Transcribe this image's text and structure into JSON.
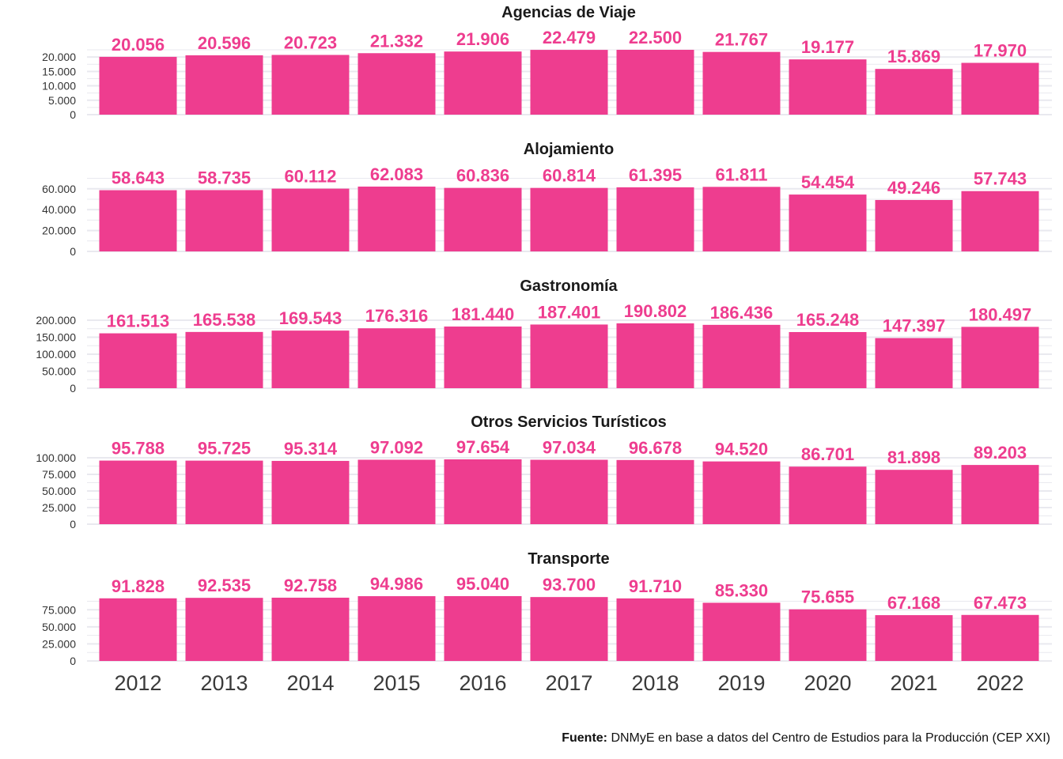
{
  "colors": {
    "bar": "#EE3D8F",
    "label": "#EE3D8F",
    "grid": "#E9E9EF"
  },
  "source": {
    "prefix": "Fuente:",
    "text": " DNMyE en base a datos del Centro de Estudios para la Producción (CEP XXI)"
  },
  "chart_data": [
    {
      "type": "bar",
      "title": "Agencias de Viaje",
      "categories": [
        "2012",
        "2013",
        "2014",
        "2015",
        "2016",
        "2017",
        "2018",
        "2019",
        "2020",
        "2021",
        "2022"
      ],
      "values": [
        20056,
        20596,
        20723,
        21332,
        21906,
        22479,
        22500,
        21767,
        19177,
        15869,
        17970
      ],
      "value_labels": [
        "20.056",
        "20.596",
        "20.723",
        "21.332",
        "21.906",
        "22.479",
        "22.500",
        "21.767",
        "19.177",
        "15.869",
        "17.970"
      ],
      "yticks": [
        0,
        5000,
        10000,
        15000,
        20000
      ],
      "ytick_labels": [
        "0",
        "5.000",
        "10.000",
        "15.000",
        "20.000"
      ],
      "ylim": [
        0,
        22500
      ],
      "grid": true
    },
    {
      "type": "bar",
      "title": "Alojamiento",
      "categories": [
        "2012",
        "2013",
        "2014",
        "2015",
        "2016",
        "2017",
        "2018",
        "2019",
        "2020",
        "2021",
        "2022"
      ],
      "values": [
        58643,
        58735,
        60112,
        62083,
        60836,
        60814,
        61395,
        61811,
        54454,
        49246,
        57743
      ],
      "value_labels": [
        "58.643",
        "58.735",
        "60.112",
        "62.083",
        "60.836",
        "60.814",
        "61.395",
        "61.811",
        "54.454",
        "49.246",
        "57.743"
      ],
      "yticks": [
        0,
        20000,
        40000,
        60000
      ],
      "ytick_labels": [
        "0",
        "20.000",
        "40.000",
        "60.000"
      ],
      "ylim": [
        0,
        62083
      ],
      "grid": true
    },
    {
      "type": "bar",
      "title": "Gastronomía",
      "categories": [
        "2012",
        "2013",
        "2014",
        "2015",
        "2016",
        "2017",
        "2018",
        "2019",
        "2020",
        "2021",
        "2022"
      ],
      "values": [
        161513,
        165538,
        169543,
        176316,
        181440,
        187401,
        190802,
        186436,
        165248,
        147397,
        180497
      ],
      "value_labels": [
        "161.513",
        "165.538",
        "169.543",
        "176.316",
        "181.440",
        "187.401",
        "190.802",
        "186.436",
        "165.248",
        "147.397",
        "180.497"
      ],
      "yticks": [
        0,
        50000,
        100000,
        150000,
        200000
      ],
      "ytick_labels": [
        "0",
        "50.000",
        "100.000",
        "150.000",
        "200.000"
      ],
      "ylim": [
        0,
        190802
      ],
      "grid": true
    },
    {
      "type": "bar",
      "title": "Otros Servicios Turísticos",
      "categories": [
        "2012",
        "2013",
        "2014",
        "2015",
        "2016",
        "2017",
        "2018",
        "2019",
        "2020",
        "2021",
        "2022"
      ],
      "values": [
        95788,
        95725,
        95314,
        97092,
        97654,
        97034,
        96678,
        94520,
        86701,
        81898,
        89203
      ],
      "value_labels": [
        "95.788",
        "95.725",
        "95.314",
        "97.092",
        "97.654",
        "97.034",
        "96.678",
        "94.520",
        "86.701",
        "81.898",
        "89.203"
      ],
      "yticks": [
        0,
        25000,
        50000,
        75000,
        100000
      ],
      "ytick_labels": [
        "0",
        "25.000",
        "50.000",
        "75.000",
        "100.000"
      ],
      "ylim": [
        0,
        97654
      ],
      "grid": true
    },
    {
      "type": "bar",
      "title": "Transporte",
      "categories": [
        "2012",
        "2013",
        "2014",
        "2015",
        "2016",
        "2017",
        "2018",
        "2019",
        "2020",
        "2021",
        "2022"
      ],
      "values": [
        91828,
        92535,
        92758,
        94986,
        95040,
        93700,
        91710,
        85330,
        75655,
        67168,
        67473
      ],
      "value_labels": [
        "91.828",
        "92.535",
        "92.758",
        "94.986",
        "95.040",
        "93.700",
        "91.710",
        "85.330",
        "75.655",
        "67.168",
        "67.473"
      ],
      "yticks": [
        0,
        25000,
        50000,
        75000
      ],
      "ytick_labels": [
        "0",
        "25.000",
        "50.000",
        "75.000"
      ],
      "ylim": [
        0,
        95040
      ],
      "grid": true
    }
  ]
}
